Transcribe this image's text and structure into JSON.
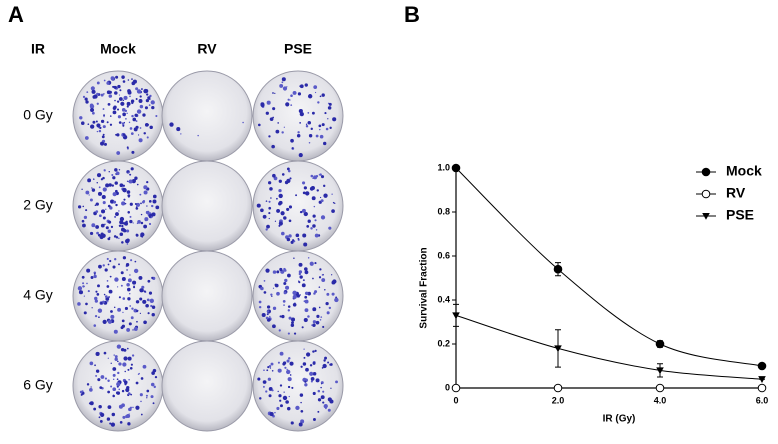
{
  "panel_a": {
    "label": "A",
    "row_header": "IR",
    "columns": [
      "Mock",
      "RV",
      "PSE"
    ],
    "rows": [
      "0 Gy",
      "2 Gy",
      "4 Gy",
      "6 Gy"
    ]
  },
  "panel_b_label": "B",
  "chart_data": {
    "type": "line",
    "x_label": "IR (Gy)",
    "y_label": "Survival Fraction",
    "xlim": [
      0,
      6
    ],
    "ylim": [
      0,
      1.0
    ],
    "xticks": [
      0,
      {
        "value": 2,
        "label": "2.0"
      },
      {
        "value": 4,
        "label": "4.0"
      },
      {
        "value": 6,
        "label": "6.0"
      }
    ],
    "yticks": [
      0,
      0.2,
      0.4,
      0.6,
      0.8,
      {
        "value": 1,
        "label": "1.0"
      }
    ],
    "x": [
      0,
      2,
      4,
      6
    ],
    "legend": "top-right",
    "series": [
      {
        "name": "Mock",
        "color": "#000000",
        "marker": "filled-circle",
        "values": [
          1.0,
          0.54,
          0.2,
          0.1
        ],
        "errors": [
          0,
          0.03,
          0.015,
          0.005
        ]
      },
      {
        "name": "RV",
        "color": "#000000",
        "marker": "open-circle",
        "values": [
          0,
          0,
          0,
          0
        ],
        "errors": [
          0,
          0,
          0,
          0
        ]
      },
      {
        "name": "PSE",
        "color": "#000000",
        "marker": "filled-triangle-down",
        "values": [
          0.33,
          0.18,
          0.08,
          0.04
        ],
        "errors": [
          0.05,
          0.085,
          0.03,
          0
        ]
      }
    ]
  }
}
